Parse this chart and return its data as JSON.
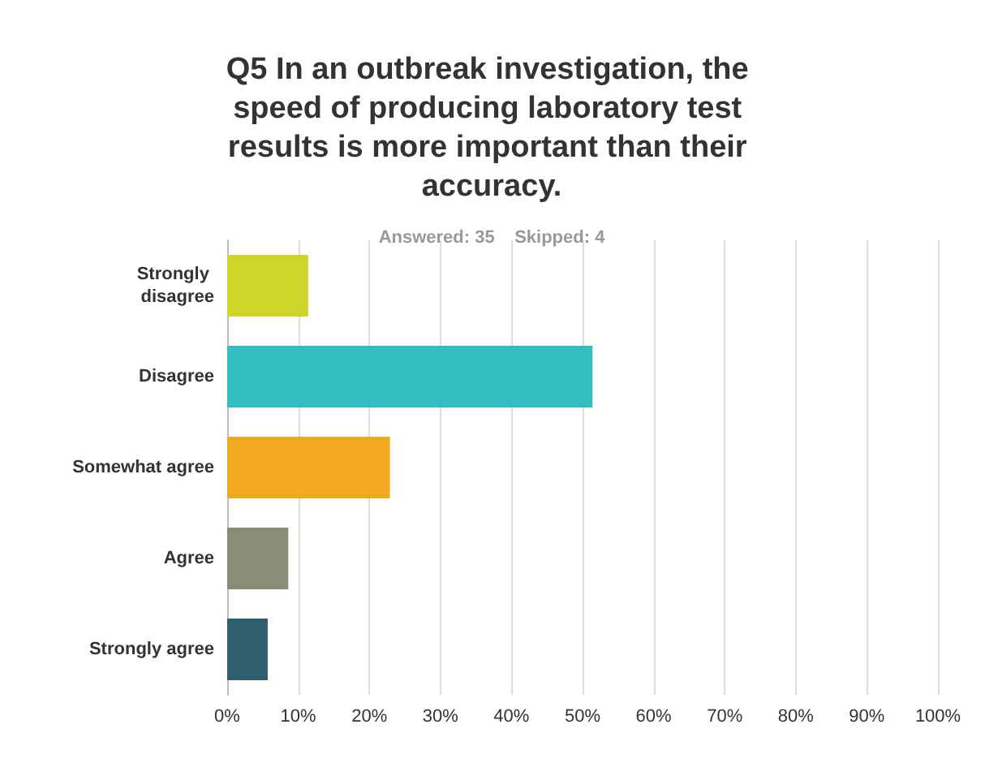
{
  "chart_data": {
    "type": "bar",
    "orientation": "horizontal",
    "title": "Q5 In an outbreak investigation, the speed of producing laboratory test results is more important than their accuracy.",
    "subtitle": "Answered: 35    Skipped: 4",
    "categories": [
      "Strongly disagree",
      "Disagree",
      "Somewhat agree",
      "Agree",
      "Strongly agree"
    ],
    "values": [
      11.4,
      51.4,
      22.9,
      8.6,
      5.7
    ],
    "colors": [
      "#cdd42a",
      "#35bec1",
      "#f1a920",
      "#8b8c78",
      "#2f5f6e"
    ],
    "xlim": [
      0,
      100
    ],
    "xticks": [
      {
        "value": 0,
        "label": "0%"
      },
      {
        "value": 10,
        "label": "10%"
      },
      {
        "value": 20,
        "label": "20%"
      },
      {
        "value": 30,
        "label": "30%"
      },
      {
        "value": 40,
        "label": "40%"
      },
      {
        "value": 50,
        "label": "50%"
      },
      {
        "value": 60,
        "label": "60%"
      },
      {
        "value": 70,
        "label": "70%"
      },
      {
        "value": 80,
        "label": "80%"
      },
      {
        "value": 90,
        "label": "90%"
      },
      {
        "value": 100,
        "label": "100%"
      }
    ],
    "grid": "x"
  }
}
